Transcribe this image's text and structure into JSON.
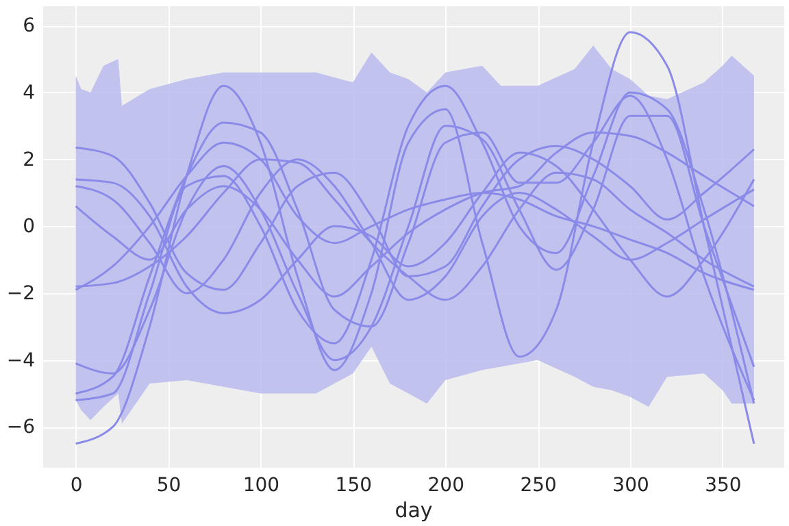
{
  "chart_data": {
    "type": "line",
    "xlabel": "day",
    "xlim": [
      -18,
      383
    ],
    "ylim": [
      -7.2,
      6.6
    ],
    "xticks": [
      0,
      50,
      100,
      150,
      200,
      250,
      300,
      350
    ],
    "yticks": [
      -6,
      -4,
      -2,
      0,
      2,
      4,
      6
    ],
    "grid": true,
    "x": [
      0,
      20,
      40,
      60,
      80,
      100,
      120,
      140,
      160,
      180,
      200,
      220,
      240,
      260,
      280,
      300,
      320,
      340,
      367
    ],
    "series": [
      {
        "type": "line",
        "color": "#babaee",
        "values": [
          null,
          null,
          null,
          null,
          null,
          null,
          null,
          null,
          null,
          null,
          null,
          null,
          null,
          null,
          null,
          null,
          null,
          null,
          null,
          null,
          null,
          null,
          null,
          null,
          null,
          null,
          null,
          null,
          null,
          null
        ],
        "x": [
          0,
          3,
          8,
          15,
          23,
          25,
          40,
          60,
          80,
          100,
          130,
          150,
          160,
          170,
          180,
          190,
          200,
          220,
          230,
          250,
          270,
          280,
          290,
          300,
          310,
          320,
          340,
          350,
          355,
          367
        ],
        "upper": [
          4.5,
          4.1,
          4.0,
          4.8,
          5.0,
          3.6,
          4.1,
          4.4,
          4.6,
          4.6,
          4.6,
          4.3,
          5.2,
          4.6,
          4.4,
          4.0,
          4.6,
          4.8,
          4.2,
          4.2,
          4.7,
          5.4,
          4.7,
          4.4,
          3.9,
          3.8,
          4.3,
          4.8,
          5.1,
          4.5
        ],
        "lower": [
          -5.2,
          -5.5,
          -5.8,
          -5.4,
          -5.0,
          -5.9,
          -4.7,
          -4.6,
          -4.8,
          -5.0,
          -5.0,
          -4.4,
          -3.6,
          -4.7,
          -5.0,
          -5.3,
          -4.6,
          -4.3,
          -4.2,
          -4.0,
          -4.5,
          -4.8,
          -4.9,
          -5.1,
          -5.4,
          -4.5,
          -4.4,
          -4.9,
          -5.3,
          -5.3
        ]
      },
      {
        "color": "#8a8ae8",
        "values": [
          -6.5,
          -6,
          -3,
          1.5,
          4.2,
          2.5,
          -1.5,
          -4.3,
          -2,
          2.5,
          3.5,
          -0.5,
          -3.9,
          -2.5,
          2.5,
          5.8,
          4.8,
          0,
          -6.5
        ]
      },
      {
        "color": "#8a8ae8",
        "values": [
          -5,
          -4.5,
          -1.5,
          1.5,
          3.1,
          2.8,
          0.5,
          -2.5,
          -3,
          -0.5,
          2.5,
          2.8,
          1.3,
          1.3,
          2.5,
          3.9,
          2,
          -1.5,
          -5.2
        ]
      },
      {
        "color": "#8a8ae8",
        "values": [
          -5.2,
          -5,
          -2,
          1.2,
          1.5,
          0,
          -2.5,
          -3.5,
          -1,
          3,
          4.2,
          2.5,
          0,
          -0.8,
          1.5,
          4,
          3.5,
          0.5,
          -5.3
        ]
      },
      {
        "color": "#8a8ae8",
        "values": [
          -4.1,
          -4.4,
          -2.5,
          0.5,
          1.8,
          0.5,
          -2,
          -4,
          -3,
          0,
          3,
          2.6,
          0.5,
          -1.3,
          0.5,
          3.3,
          3.3,
          0,
          -4.2
        ]
      },
      {
        "color": "#8a8ae8",
        "values": [
          2.35,
          2.1,
          0.7,
          -1.4,
          -1.9,
          -0.5,
          1.2,
          1.6,
          0.3,
          -1.5,
          -1.2,
          0.6,
          2.0,
          2.4,
          2,
          1.2,
          0.2,
          1,
          2.3
        ]
      },
      {
        "color": "#8a8ae8",
        "values": [
          1.4,
          1.3,
          0.3,
          -1.8,
          -2.6,
          -2.2,
          -1,
          0,
          -0.3,
          -1.2,
          -0.5,
          1,
          2.2,
          1.8,
          0.5,
          -1,
          -2.1,
          -1,
          1.4
        ]
      },
      {
        "color": "#8a8ae8",
        "values": [
          1.2,
          0.8,
          -0.5,
          -2,
          -1,
          1,
          2,
          1.2,
          -0.5,
          -2.2,
          -1.5,
          0.3,
          1,
          0.5,
          -0.3,
          -1,
          -0.5,
          0.2,
          1.1
        ]
      },
      {
        "color": "#8a8ae8",
        "values": [
          0.6,
          -0.3,
          -1,
          0.5,
          1.2,
          0.5,
          -1,
          -2.1,
          -1.2,
          -0.2,
          0.5,
          1,
          1.2,
          2.2,
          2.8,
          2.7,
          2.2,
          1.5,
          0.6
        ]
      },
      {
        "color": "#8a8ae8",
        "values": [
          -1.8,
          -1.7,
          -1.2,
          -0.3,
          1.0,
          2.0,
          1.9,
          0.8,
          -0.5,
          -1.5,
          -2.2,
          -1.2,
          0.5,
          1.6,
          1.4,
          0.5,
          -0.2,
          -1.0,
          -1.8
        ]
      },
      {
        "color": "#8a8ae8",
        "values": [
          -1.9,
          -1.2,
          0,
          1.5,
          2.5,
          2.0,
          0.3,
          -0.5,
          0,
          0.5,
          0.8,
          1,
          0.8,
          0.3,
          0,
          -0.4,
          -0.8,
          -1.4,
          -1.9
        ]
      }
    ]
  }
}
